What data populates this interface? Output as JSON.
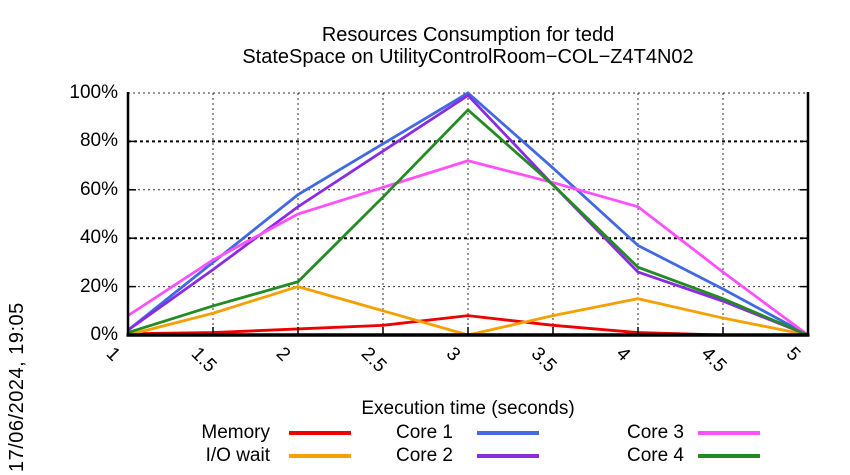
{
  "timestamp": "17/06/2024, 19:05",
  "chart_data": {
    "type": "line",
    "title_lines": [
      "Resources Consumption for tedd",
      "StateSpace on UtilityControlRoom−COL−Z4T4N02"
    ],
    "xlabel": "Execution time (seconds)",
    "ylabel": "",
    "xlim": [
      1,
      5
    ],
    "ylim": [
      0,
      100
    ],
    "grid": true,
    "legend_position": "bottom",
    "x": [
      1,
      1.5,
      2,
      2.5,
      3,
      3.5,
      4,
      4.5,
      5
    ],
    "xticks": [
      1,
      1.5,
      2,
      2.5,
      3,
      3.5,
      4,
      4.5,
      5
    ],
    "xtick_labels": [
      "1",
      "1.5",
      "2",
      "2.5",
      "3",
      "3.5",
      "4",
      "4.5",
      "5"
    ],
    "yticks": [
      0,
      20,
      40,
      60,
      80,
      100
    ],
    "ytick_labels": [
      "0%",
      "20%",
      "40%",
      "60%",
      "80%",
      "100%"
    ],
    "series": [
      {
        "name": "Memory",
        "color": "#ee0000",
        "values": [
          0.5,
          1,
          2.5,
          4,
          8,
          4,
          1,
          0,
          0
        ]
      },
      {
        "name": "I/O wait",
        "color": "#f5a000",
        "values": [
          0,
          9,
          20,
          10,
          0,
          8,
          15,
          7,
          0
        ]
      },
      {
        "name": "Core 1",
        "color": "#4169e1",
        "values": [
          2,
          30,
          58,
          79,
          100,
          69,
          37,
          19,
          0
        ]
      },
      {
        "name": "Core 2",
        "color": "#8a2be2",
        "values": [
          2,
          27,
          53,
          76,
          99,
          62,
          26,
          14,
          0
        ]
      },
      {
        "name": "Core 3",
        "color": "#ff50ff",
        "values": [
          8,
          31,
          50,
          61,
          72,
          63,
          53,
          26,
          0
        ]
      },
      {
        "name": "Core 4",
        "color": "#228b22",
        "values": [
          1,
          12,
          22,
          57,
          93,
          62,
          28,
          15,
          0
        ]
      }
    ],
    "legend_rows": [
      [
        "Memory",
        "Core 1",
        "Core 3"
      ],
      [
        "I/O wait",
        "Core 2",
        "Core 4"
      ]
    ]
  }
}
